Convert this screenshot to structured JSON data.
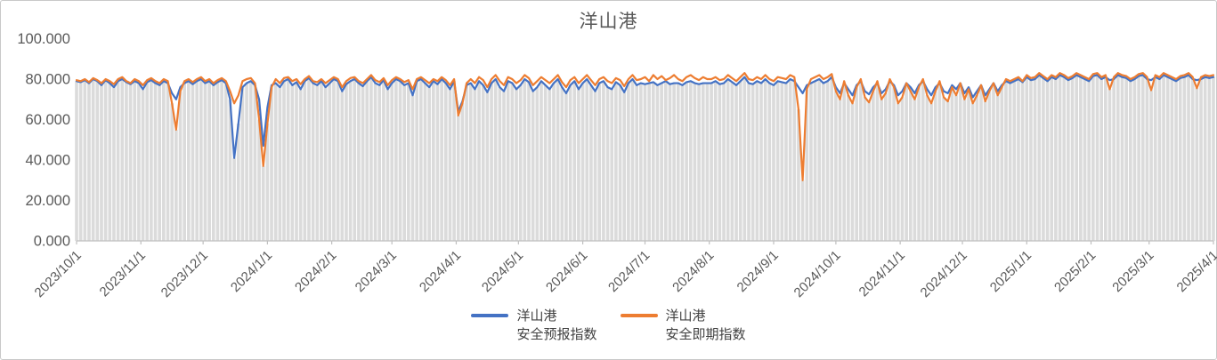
{
  "colors": {
    "title": "#595959",
    "axis_text": "#595959",
    "axis_line": "#bfbfbf",
    "legend_text": "#404040",
    "panel_border": "#c9c9c9",
    "series_blue": "#4472C4",
    "series_orange": "#ED7D31",
    "bars_gray": "#dbdbdb"
  },
  "chart_data": {
    "type": "line",
    "title": "洋山港",
    "grid": false,
    "legend_position": "bottom",
    "x_axis": {
      "start_date": "2023/10/1",
      "end_date": "2025/4/1",
      "step_days": 2,
      "tick_labels": [
        "2023/10/1",
        "2023/11/1",
        "2023/12/1",
        "2024/1/1",
        "2024/2/1",
        "2024/3/1",
        "2024/4/1",
        "2024/5/1",
        "2024/6/1",
        "2024/7/1",
        "2024/8/1",
        "2024/9/1",
        "2024/10/1",
        "2024/11/1",
        "2024/12/1",
        "2025/1/1",
        "2025/2/1",
        "2025/3/1",
        "2025/4/1"
      ],
      "tick_day_offsets": [
        0,
        31,
        61,
        92,
        123,
        152,
        183,
        213,
        244,
        274,
        305,
        336,
        366,
        397,
        427,
        458,
        489,
        517,
        548
      ]
    },
    "y_axis": {
      "min": 0,
      "max": 100,
      "tick_step": 20,
      "tick_labels": [
        "0.000",
        "20.000",
        "40.000",
        "60.000",
        "80.000",
        "100.000"
      ]
    },
    "background_bars": {
      "color": "#dbdbdb",
      "derive": "min_of_series"
    },
    "series": [
      {
        "name_lines": [
          "洋山港",
          "安全预报指数"
        ],
        "name": "洋山港安全预报指数",
        "color": "#4472C4",
        "values": [
          79,
          78.5,
          79.5,
          78,
          80,
          79,
          77,
          79.5,
          78,
          76,
          79,
          80,
          78.5,
          77.5,
          79,
          78,
          75,
          78.5,
          79.5,
          78,
          77,
          79,
          78,
          73,
          70,
          76,
          78,
          79,
          77.5,
          79,
          80,
          78,
          79,
          77,
          78.5,
          79.5,
          78,
          70,
          41,
          58,
          76,
          78,
          79,
          77,
          70,
          47,
          66,
          77,
          78,
          76,
          79,
          80,
          77,
          78.5,
          75,
          79,
          80.5,
          78,
          77,
          79,
          76,
          78,
          80,
          79,
          74,
          77.5,
          79,
          80,
          78,
          76.5,
          79,
          81,
          78,
          77,
          79.5,
          75,
          78,
          80,
          79,
          77,
          78,
          72,
          79,
          80,
          78,
          76,
          79,
          77.5,
          80,
          78,
          75,
          79,
          64,
          69,
          77,
          78,
          75,
          79,
          77,
          73.5,
          78,
          80,
          76,
          74,
          79,
          78,
          75,
          77,
          80,
          78.5,
          74,
          76,
          79,
          77,
          75,
          78,
          80,
          76,
          73,
          77,
          79,
          75,
          78,
          80,
          77,
          74,
          78,
          79,
          76,
          75,
          78.5,
          77,
          73.5,
          78,
          80,
          77,
          78,
          77.5,
          78,
          78.5,
          77,
          78,
          79,
          77.5,
          78,
          78,
          77,
          78.5,
          79,
          78,
          77.5,
          78,
          78,
          78,
          79,
          77.5,
          78,
          80,
          78.5,
          77,
          79,
          81,
          78,
          77.5,
          79,
          78,
          80,
          78,
          77,
          79,
          78.5,
          78,
          80,
          79,
          76,
          73,
          77,
          78,
          79,
          80,
          78,
          79,
          81,
          76,
          73,
          78,
          75,
          72,
          77,
          79,
          74,
          72.5,
          76,
          78,
          73,
          75,
          79,
          77,
          72,
          74,
          78,
          76,
          73,
          77,
          79,
          75,
          72,
          76,
          78,
          74,
          73,
          77,
          75,
          78,
          73,
          76,
          71,
          74,
          77,
          72,
          75,
          78,
          74,
          77,
          79,
          78,
          79,
          80,
          78.5,
          81,
          79.5,
          80,
          82,
          80.5,
          79,
          81,
          80,
          82,
          81,
          79.5,
          80.5,
          82,
          81,
          80,
          79,
          81.5,
          82,
          80,
          81,
          79.5,
          80,
          82,
          81,
          80.5,
          79,
          80,
          81.5,
          82,
          80,
          79.5,
          81,
          80,
          82,
          81,
          80,
          79,
          80.5,
          81,
          82,
          80,
          79.5,
          80,
          81,
          80.5,
          81
        ]
      },
      {
        "name_lines": [
          "洋山港",
          "安全即期指数"
        ],
        "name": "洋山港安全即期指数",
        "color": "#ED7D31",
        "values": [
          79.5,
          79,
          80,
          78.5,
          80.5,
          79.5,
          78,
          80,
          79,
          77.5,
          80,
          81,
          79,
          78,
          80,
          79,
          77,
          79.5,
          80.5,
          79,
          78,
          80,
          79,
          68,
          55,
          74,
          79,
          80,
          78.5,
          80,
          81,
          79,
          80,
          78,
          79.5,
          80.5,
          79,
          74,
          68,
          72,
          79,
          80,
          80.5,
          78,
          60,
          37,
          58,
          76,
          80,
          78,
          80.5,
          81,
          79,
          80,
          77.5,
          80,
          81.5,
          79,
          78.5,
          80,
          78,
          79.5,
          81,
          80,
          76,
          79,
          80.5,
          81,
          79,
          78,
          80,
          82,
          79.5,
          78.5,
          80.5,
          77,
          79.5,
          81,
          80,
          78.5,
          79.5,
          75,
          80,
          81,
          79.5,
          78,
          80,
          79,
          81,
          79.5,
          77,
          80,
          62,
          68,
          78,
          80,
          78,
          81,
          79.5,
          76,
          80,
          82,
          79,
          77,
          81,
          80,
          78,
          79.5,
          82,
          80.5,
          77,
          79,
          81,
          79.5,
          78,
          80,
          82,
          78.5,
          76,
          79.5,
          81,
          78,
          80,
          82,
          79.5,
          77,
          80,
          81,
          79,
          78,
          80.5,
          79.5,
          76.5,
          80,
          82,
          79.5,
          80,
          81,
          79,
          82,
          80,
          81.5,
          79.5,
          80.5,
          82,
          80,
          79,
          81,
          82,
          80.5,
          79.5,
          81,
          80,
          80,
          81,
          79.5,
          80,
          82,
          80.5,
          79,
          81,
          83,
          80,
          79.5,
          81,
          80,
          82,
          80,
          79,
          81,
          80.5,
          80,
          82,
          81,
          65,
          30,
          75,
          80,
          81,
          82,
          80,
          81,
          82.5,
          74,
          70,
          79,
          72,
          68,
          76,
          80,
          71,
          68.5,
          74,
          79,
          70,
          73,
          80,
          76,
          68,
          71,
          78,
          74,
          70,
          76,
          80,
          72,
          68,
          74,
          79,
          71,
          69,
          76,
          72,
          78,
          70,
          75,
          68,
          72,
          77,
          69,
          74,
          78,
          72,
          76,
          80,
          79,
          80,
          81,
          79,
          82,
          80.5,
          81,
          83,
          81.5,
          80,
          82,
          81,
          83,
          82,
          80.5,
          81.5,
          83,
          82,
          81,
          80,
          82.5,
          83,
          81,
          82,
          75,
          81,
          83,
          82,
          81.5,
          80,
          81,
          82.5,
          83,
          81,
          74.5,
          82,
          81,
          83,
          82,
          81,
          80,
          81.5,
          82,
          83,
          81,
          75.5,
          81,
          82,
          81.5,
          82
        ]
      }
    ]
  }
}
